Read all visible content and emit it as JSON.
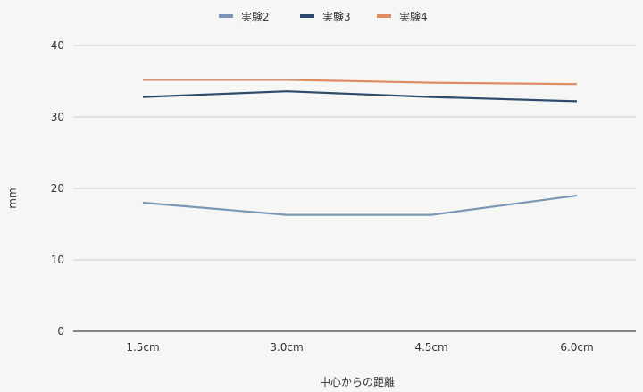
{
  "chart_data": {
    "type": "line",
    "title": "",
    "xlabel": "中心からの距離",
    "ylabel": "mm",
    "categories": [
      "1.5cm",
      "3.0cm",
      "4.5cm",
      "6.0cm"
    ],
    "yticks": [
      "0",
      "10",
      "20",
      "30",
      "40"
    ],
    "ylim": [
      0,
      40
    ],
    "grid": true,
    "legend_position": "top",
    "series": [
      {
        "name": "実験2",
        "color": "#7a98b5",
        "values": [
          18.0,
          16.3,
          16.3,
          19.0
        ]
      },
      {
        "name": "実験3",
        "color": "#2d4b6e",
        "values": [
          32.8,
          33.6,
          32.8,
          32.2
        ]
      },
      {
        "name": "実験4",
        "color": "#dd8d62",
        "values": [
          35.2,
          35.2,
          34.8,
          34.6
        ]
      }
    ]
  }
}
